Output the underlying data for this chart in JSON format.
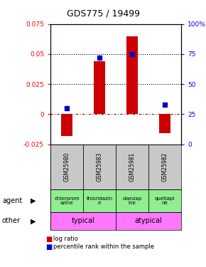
{
  "title": "GDS775 / 19499",
  "samples": [
    "GSM25980",
    "GSM25983",
    "GSM25981",
    "GSM25982"
  ],
  "log_ratios": [
    -0.018,
    0.044,
    0.065,
    -0.016
  ],
  "percentile_rank_pct": [
    30,
    72,
    75,
    33
  ],
  "ylim_left": [
    -0.025,
    0.075
  ],
  "ylim_right": [
    0,
    100
  ],
  "yticks_left": [
    -0.025,
    0,
    0.025,
    0.05,
    0.075
  ],
  "yticks_right": [
    0,
    25,
    50,
    75,
    100
  ],
  "hlines": [
    0.025,
    0.05
  ],
  "agents": [
    "chlorprom\nazine",
    "thioridazin\ne",
    "olanzap\nine",
    "quetiapi\nne"
  ],
  "other_groups": [
    [
      "typical",
      -0.5,
      1.5
    ],
    [
      "atypical",
      1.5,
      3.5
    ]
  ],
  "other_color": "#FF77FF",
  "agent_color": "#90EE90",
  "sample_bg": "#C8C8C8",
  "bar_color": "#CC0000",
  "dot_color": "#0000CC",
  "bar_width": 0.35,
  "bg_color": "#FFFFFF"
}
